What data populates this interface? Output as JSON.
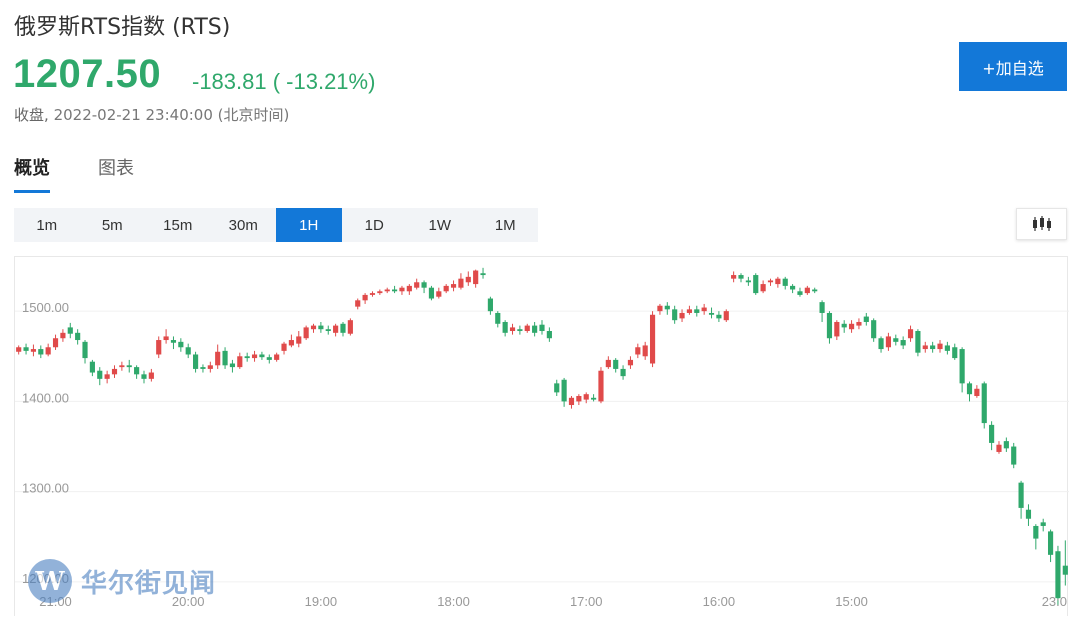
{
  "header": {
    "title": "俄罗斯RTS指数 (RTS)",
    "price": "1207.50",
    "change": "-183.81 ( -13.21%)",
    "status_label": "收盘,",
    "timestamp": "2022-02-21 23:40:00 (北京时间)",
    "watch_button": "+加自选"
  },
  "colors": {
    "up": "#e04a4a",
    "down": "#2fa86b",
    "accent": "#1378d8"
  },
  "tabs": [
    {
      "label": "概览",
      "active": true
    },
    {
      "label": "图表",
      "active": false
    }
  ],
  "periods": [
    {
      "label": "1m",
      "active": false
    },
    {
      "label": "5m",
      "active": false
    },
    {
      "label": "15m",
      "active": false
    },
    {
      "label": "30m",
      "active": false
    },
    {
      "label": "1H",
      "active": true
    },
    {
      "label": "1D",
      "active": false
    },
    {
      "label": "1W",
      "active": false
    },
    {
      "label": "1M",
      "active": false
    }
  ],
  "chart_type_icon": "candlestick-icon",
  "watermark": {
    "text": "华尔街见闻",
    "icon": "w-logo-icon"
  },
  "chart_data": {
    "type": "candlestick",
    "ylim": [
      1170,
      1560
    ],
    "y_ticks": [
      "1500.00",
      "1400.00",
      "1300.00",
      "1200.00"
    ],
    "y_tick_values": [
      1500,
      1400,
      1300,
      1200
    ],
    "x_ticks": [
      "21:00",
      "20:00",
      "19:00",
      "18:00",
      "17:00",
      "16:00",
      "15:00",
      "23:0"
    ],
    "x_tick_slots": [
      5,
      23,
      41,
      59,
      77,
      95,
      113,
      131
    ],
    "grid": true,
    "candles": [
      [
        1455,
        1460,
        1462,
        1452
      ],
      [
        1460,
        1456,
        1464,
        1452
      ],
      [
        1455,
        1458,
        1463,
        1450
      ],
      [
        1458,
        1452,
        1462,
        1448
      ],
      [
        1452,
        1460,
        1464,
        1450
      ],
      [
        1460,
        1470,
        1474,
        1457
      ],
      [
        1470,
        1476,
        1480,
        1466
      ],
      [
        1482,
        1475,
        1487,
        1470
      ],
      [
        1476,
        1468,
        1480,
        1463
      ],
      [
        1466,
        1448,
        1468,
        1442
      ],
      [
        1444,
        1432,
        1446,
        1428
      ],
      [
        1434,
        1425,
        1438,
        1418
      ],
      [
        1425,
        1430,
        1434,
        1420
      ],
      [
        1430,
        1436,
        1440,
        1426
      ],
      [
        1438,
        1440,
        1444,
        1434
      ],
      [
        1440,
        1438,
        1446,
        1432
      ],
      [
        1438,
        1430,
        1440,
        1425
      ],
      [
        1430,
        1425,
        1434,
        1420
      ],
      [
        1425,
        1432,
        1436,
        1422
      ],
      [
        1452,
        1468,
        1472,
        1448
      ],
      [
        1468,
        1472,
        1480,
        1464
      ],
      [
        1468,
        1465,
        1472,
        1458
      ],
      [
        1466,
        1460,
        1470,
        1455
      ],
      [
        1460,
        1452,
        1464,
        1448
      ],
      [
        1452,
        1436,
        1455,
        1432
      ],
      [
        1438,
        1436,
        1441,
        1432
      ],
      [
        1436,
        1440,
        1444,
        1432
      ],
      [
        1440,
        1455,
        1463,
        1436
      ],
      [
        1456,
        1440,
        1460,
        1436
      ],
      [
        1442,
        1438,
        1446,
        1432
      ],
      [
        1438,
        1450,
        1454,
        1436
      ],
      [
        1450,
        1448,
        1454,
        1444
      ],
      [
        1448,
        1452,
        1456,
        1444
      ],
      [
        1452,
        1449,
        1455,
        1446
      ],
      [
        1449,
        1446,
        1452,
        1442
      ],
      [
        1446,
        1452,
        1454,
        1444
      ],
      [
        1456,
        1464,
        1466,
        1452
      ],
      [
        1462,
        1468,
        1474,
        1460
      ],
      [
        1464,
        1472,
        1478,
        1460
      ],
      [
        1470,
        1482,
        1484,
        1468
      ],
      [
        1480,
        1484,
        1486,
        1476
      ],
      [
        1484,
        1480,
        1488,
        1476
      ],
      [
        1480,
        1478,
        1484,
        1474
      ],
      [
        1476,
        1484,
        1486,
        1472
      ],
      [
        1486,
        1476,
        1488,
        1472
      ],
      [
        1475,
        1490,
        1492,
        1473
      ],
      [
        1505,
        1512,
        1514,
        1502
      ],
      [
        1512,
        1518,
        1520,
        1508
      ],
      [
        1518,
        1520,
        1522,
        1516
      ],
      [
        1520,
        1522,
        1524,
        1518
      ],
      [
        1522,
        1524,
        1526,
        1520
      ],
      [
        1524,
        1522,
        1528,
        1520
      ],
      [
        1522,
        1526,
        1528,
        1518
      ],
      [
        1522,
        1528,
        1530,
        1518
      ],
      [
        1526,
        1532,
        1536,
        1524
      ],
      [
        1532,
        1526,
        1534,
        1520
      ],
      [
        1526,
        1514,
        1528,
        1512
      ],
      [
        1516,
        1522,
        1526,
        1514
      ],
      [
        1522,
        1528,
        1530,
        1520
      ],
      [
        1526,
        1530,
        1534,
        1522
      ],
      [
        1526,
        1536,
        1542,
        1524
      ],
      [
        1532,
        1538,
        1544,
        1528
      ],
      [
        1530,
        1545,
        1546,
        1526
      ],
      [
        1542,
        1540,
        1548,
        1536
      ],
      [
        1514,
        1500,
        1516,
        1496
      ],
      [
        1498,
        1486,
        1500,
        1482
      ],
      [
        1488,
        1476,
        1490,
        1472
      ],
      [
        1478,
        1482,
        1486,
        1474
      ],
      [
        1480,
        1478,
        1484,
        1474
      ],
      [
        1478,
        1484,
        1486,
        1476
      ],
      [
        1484,
        1476,
        1488,
        1472
      ],
      [
        1485,
        1478,
        1490,
        1474
      ],
      [
        1478,
        1470,
        1482,
        1466
      ],
      [
        1420,
        1410,
        1424,
        1406
      ],
      [
        1424,
        1400,
        1426,
        1394
      ],
      [
        1396,
        1404,
        1406,
        1392
      ],
      [
        1400,
        1406,
        1408,
        1396
      ],
      [
        1402,
        1408,
        1410,
        1398
      ],
      [
        1404,
        1402,
        1408,
        1400
      ],
      [
        1400,
        1434,
        1438,
        1398
      ],
      [
        1438,
        1446,
        1450,
        1436
      ],
      [
        1446,
        1436,
        1448,
        1432
      ],
      [
        1436,
        1428,
        1440,
        1424
      ],
      [
        1440,
        1446,
        1450,
        1436
      ],
      [
        1452,
        1460,
        1464,
        1448
      ],
      [
        1450,
        1462,
        1466,
        1446
      ],
      [
        1442,
        1496,
        1500,
        1438
      ],
      [
        1500,
        1506,
        1508,
        1496
      ],
      [
        1506,
        1502,
        1510,
        1496
      ],
      [
        1502,
        1490,
        1506,
        1486
      ],
      [
        1492,
        1498,
        1502,
        1488
      ],
      [
        1498,
        1502,
        1506,
        1496
      ],
      [
        1502,
        1498,
        1506,
        1494
      ],
      [
        1500,
        1504,
        1508,
        1496
      ],
      [
        1498,
        1496,
        1504,
        1492
      ],
      [
        1496,
        1492,
        1500,
        1488
      ],
      [
        1490,
        1500,
        1502,
        1488
      ],
      [
        1536,
        1540,
        1544,
        1532
      ],
      [
        1540,
        1536,
        1542,
        1532
      ],
      [
        1534,
        1532,
        1538,
        1528
      ],
      [
        1540,
        1520,
        1542,
        1518
      ],
      [
        1522,
        1530,
        1534,
        1520
      ],
      [
        1532,
        1534,
        1536,
        1528
      ],
      [
        1530,
        1536,
        1538,
        1526
      ],
      [
        1536,
        1528,
        1538,
        1524
      ],
      [
        1528,
        1524,
        1530,
        1520
      ],
      [
        1522,
        1518,
        1526,
        1516
      ],
      [
        1520,
        1526,
        1528,
        1518
      ],
      [
        1524,
        1522,
        1526,
        1520
      ],
      [
        1510,
        1498,
        1512,
        1488
      ],
      [
        1498,
        1470,
        1500,
        1464
      ],
      [
        1472,
        1488,
        1490,
        1468
      ],
      [
        1486,
        1482,
        1490,
        1476
      ],
      [
        1480,
        1486,
        1490,
        1476
      ],
      [
        1484,
        1488,
        1492,
        1480
      ],
      [
        1494,
        1488,
        1498,
        1484
      ],
      [
        1490,
        1470,
        1492,
        1466
      ],
      [
        1470,
        1458,
        1472,
        1454
      ],
      [
        1460,
        1472,
        1476,
        1456
      ],
      [
        1470,
        1466,
        1474,
        1462
      ],
      [
        1468,
        1462,
        1472,
        1458
      ],
      [
        1470,
        1480,
        1484,
        1466
      ],
      [
        1478,
        1454,
        1480,
        1450
      ],
      [
        1458,
        1462,
        1466,
        1454
      ],
      [
        1462,
        1458,
        1466,
        1454
      ],
      [
        1458,
        1464,
        1468,
        1454
      ],
      [
        1462,
        1456,
        1466,
        1452
      ],
      [
        1460,
        1448,
        1464,
        1446
      ],
      [
        1458,
        1420,
        1460,
        1410
      ],
      [
        1420,
        1408,
        1422,
        1400
      ],
      [
        1406,
        1414,
        1418,
        1404
      ],
      [
        1420,
        1376,
        1422,
        1370
      ],
      [
        1374,
        1354,
        1378,
        1346
      ],
      [
        1344,
        1352,
        1356,
        1342
      ],
      [
        1356,
        1348,
        1360,
        1344
      ],
      [
        1350,
        1330,
        1354,
        1326
      ],
      [
        1310,
        1282,
        1312,
        1270
      ],
      [
        1280,
        1270,
        1286,
        1262
      ],
      [
        1262,
        1248,
        1264,
        1236
      ],
      [
        1266,
        1262,
        1270,
        1256
      ],
      [
        1256,
        1230,
        1258,
        1222
      ],
      [
        1234,
        1182,
        1240,
        1174
      ],
      [
        1218,
        1208,
        1246,
        1196
      ]
    ]
  }
}
